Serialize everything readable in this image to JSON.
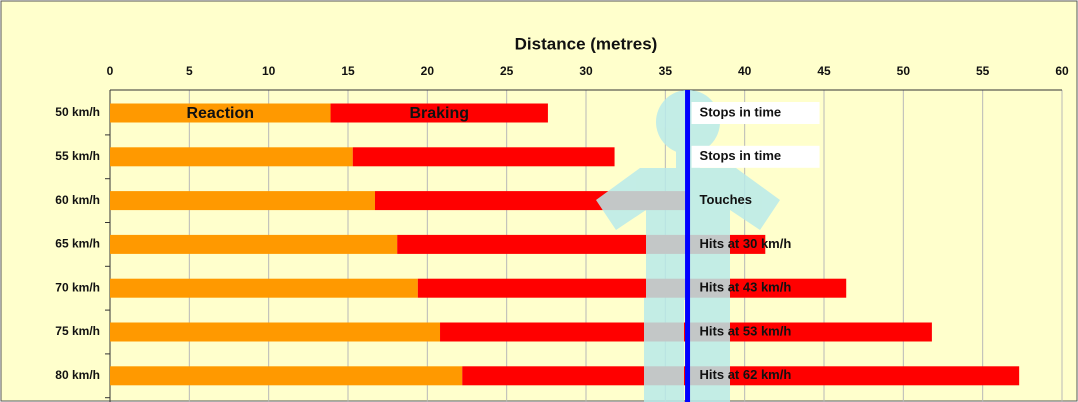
{
  "chart_data": {
    "type": "bar",
    "orientation": "horizontal",
    "stacked": true,
    "title": "Distance (metres)",
    "categories": [
      "50 km/h",
      "55 km/h",
      "60 km/h",
      "65 km/h",
      "70 km/h",
      "75 km/h",
      "80 km/h"
    ],
    "series": [
      {
        "name": "Reaction",
        "color": "#ff9900",
        "values": [
          13.9,
          15.3,
          16.7,
          18.1,
          19.4,
          20.8,
          22.2
        ]
      },
      {
        "name": "Braking",
        "color": "#ff0000",
        "values": [
          13.7,
          16.5,
          19.8,
          23.2,
          27.0,
          31.0,
          35.1
        ]
      }
    ],
    "outcomes": [
      "Stops in time",
      "Stops in time",
      "Touches",
      "Hits at 30 km/h",
      "Hits at 43 km/h",
      "Hits at 53 km/h",
      "Hits at 62 km/h"
    ],
    "marker": {
      "value": 36.4,
      "color": "#0000ff"
    },
    "xlim": [
      0,
      60
    ],
    "xticks": [
      0,
      5,
      10,
      15,
      20,
      25,
      30,
      35,
      40,
      45,
      50,
      55,
      60
    ],
    "grid": true
  }
}
